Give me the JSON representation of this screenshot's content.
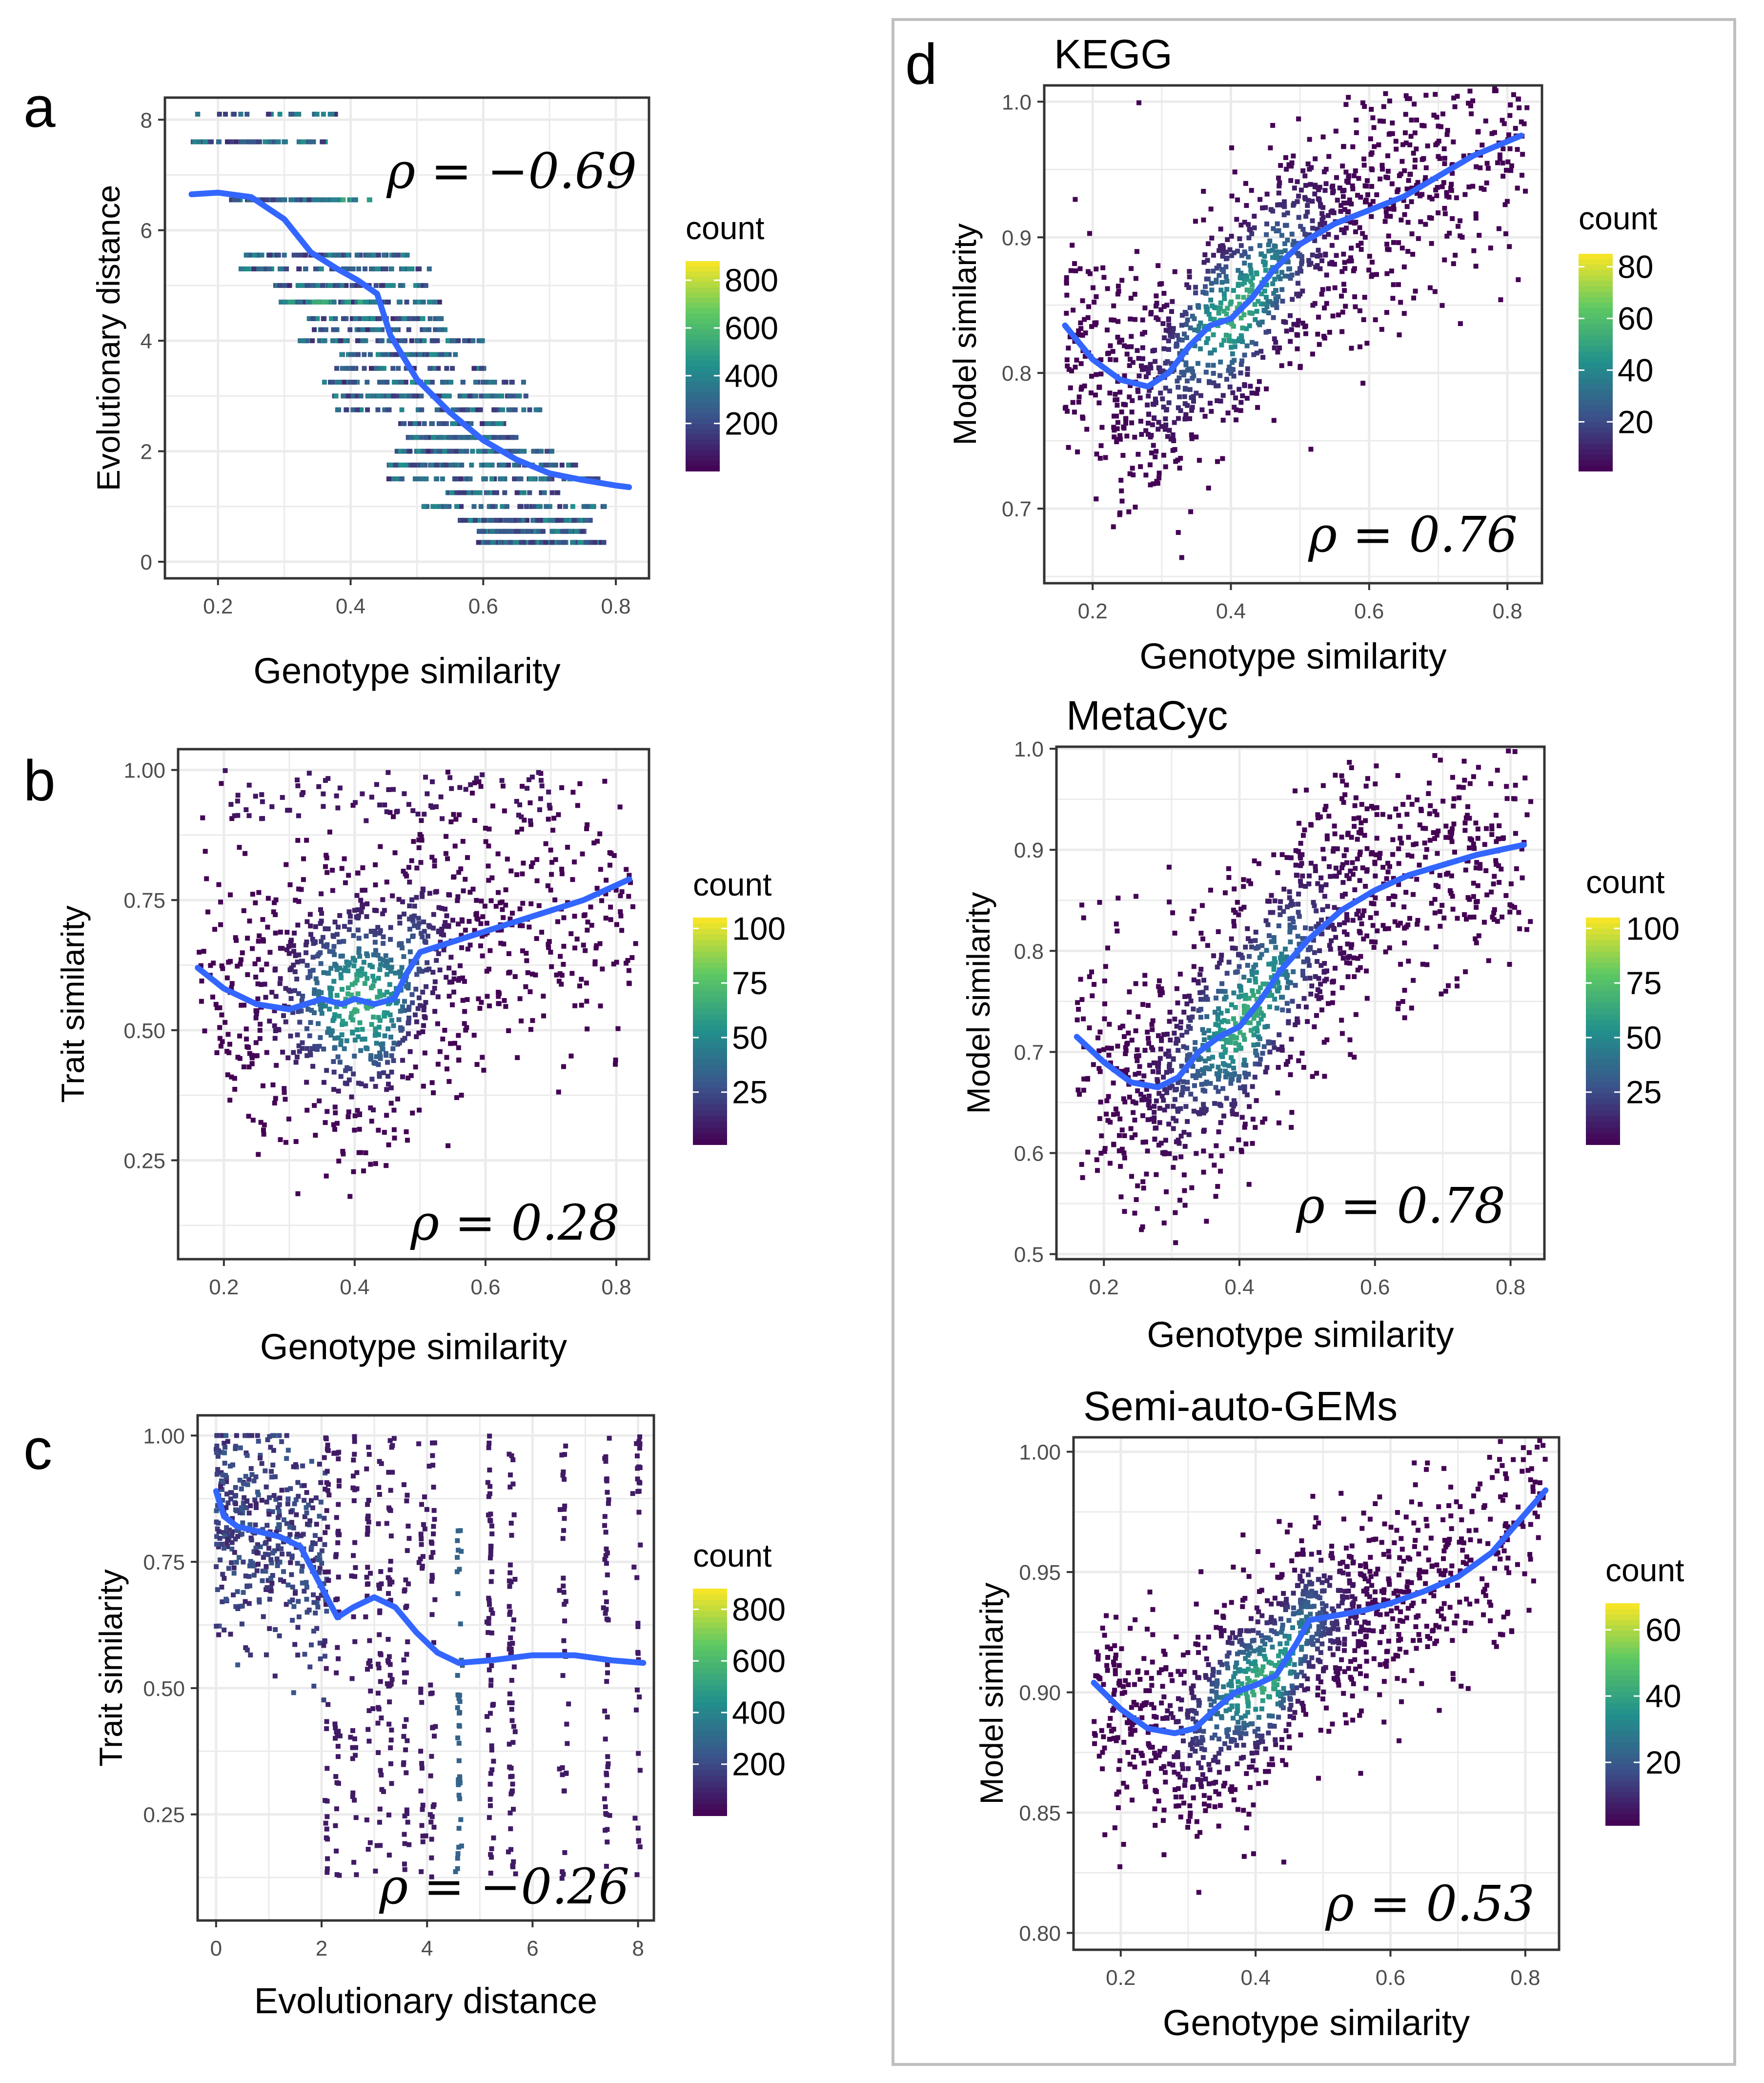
{
  "panels": {
    "a": {
      "letter": "a"
    },
    "b": {
      "letter": "b"
    },
    "c": {
      "letter": "c"
    },
    "d": {
      "letter": "d"
    }
  },
  "colors": {
    "background": "#ffffff",
    "grid": "#ebebeb",
    "axis_frame": "#333333",
    "smooth_line": "#3366ff",
    "panel_d_border": "#bfbfbf",
    "viridis": [
      "#440154",
      "#3b528b",
      "#21908c",
      "#5dc863",
      "#fde725"
    ]
  },
  "chart_data": [
    {
      "id": "a",
      "type": "heatmap",
      "title": "",
      "xlabel": "Genotype similarity",
      "ylabel": "Evolutionary distance",
      "xlim": [
        0.12,
        0.85
      ],
      "ylim": [
        -0.3,
        8.4
      ],
      "xticks": [
        0.2,
        0.4,
        0.6,
        0.8
      ],
      "xtick_labels": [
        "0.2",
        "0.4",
        "0.6",
        "0.8"
      ],
      "yticks": [
        0,
        2,
        4,
        6,
        8
      ],
      "ytick_labels": [
        "0",
        "2",
        "4",
        "6",
        "8"
      ],
      "annotation": "ρ = −0.69",
      "legend": {
        "title": "count",
        "min": 1,
        "max": 880,
        "breaks": [
          800,
          600,
          400,
          200
        ],
        "break_labels": [
          "800",
          "600",
          "400",
          "200"
        ],
        "position": "right"
      },
      "smooth": {
        "x": [
          0.16,
          0.2,
          0.25,
          0.3,
          0.34,
          0.38,
          0.41,
          0.44,
          0.46,
          0.5,
          0.55,
          0.6,
          0.65,
          0.7,
          0.75,
          0.8,
          0.82
        ],
        "y": [
          6.65,
          6.68,
          6.6,
          6.2,
          5.6,
          5.3,
          5.1,
          4.85,
          4.1,
          3.3,
          2.7,
          2.2,
          1.85,
          1.6,
          1.48,
          1.38,
          1.35
        ]
      }
    },
    {
      "id": "b",
      "type": "heatmap",
      "title": "",
      "xlabel": "Genotype similarity",
      "ylabel": "Trait similarity",
      "xlim": [
        0.13,
        0.85
      ],
      "ylim": [
        0.06,
        1.04
      ],
      "xticks": [
        0.2,
        0.4,
        0.6,
        0.8
      ],
      "xtick_labels": [
        "0.2",
        "0.4",
        "0.6",
        "0.8"
      ],
      "yticks": [
        0.25,
        0.5,
        0.75,
        1.0
      ],
      "ytick_labels": [
        "0.25",
        "0.50",
        "0.75",
        "1.00"
      ],
      "annotation": "ρ = 0.28",
      "legend": {
        "title": "count",
        "min": 1,
        "max": 105,
        "breaks": [
          100,
          75,
          50,
          25
        ],
        "break_labels": [
          "100",
          "75",
          "50",
          "25"
        ],
        "position": "right"
      },
      "smooth": {
        "x": [
          0.16,
          0.2,
          0.25,
          0.3,
          0.35,
          0.38,
          0.4,
          0.43,
          0.46,
          0.48,
          0.5,
          0.55,
          0.6,
          0.65,
          0.7,
          0.75,
          0.82
        ],
        "y": [
          0.62,
          0.58,
          0.55,
          0.54,
          0.56,
          0.55,
          0.56,
          0.55,
          0.56,
          0.61,
          0.65,
          0.67,
          0.69,
          0.71,
          0.73,
          0.75,
          0.79
        ]
      }
    },
    {
      "id": "c",
      "type": "heatmap",
      "title": "",
      "xlabel": "Evolutionary distance",
      "ylabel": "Trait similarity",
      "xlim": [
        -0.35,
        8.3
      ],
      "ylim": [
        0.04,
        1.04
      ],
      "xticks": [
        0,
        2,
        4,
        6,
        8
      ],
      "xtick_labels": [
        "0",
        "2",
        "4",
        "6",
        "8"
      ],
      "yticks": [
        0.25,
        0.5,
        0.75,
        1.0
      ],
      "ytick_labels": [
        "0.25",
        "0.50",
        "0.75",
        "1.00"
      ],
      "annotation": "ρ = −0.26",
      "legend": {
        "title": "count",
        "min": 1,
        "max": 880,
        "breaks": [
          800,
          600,
          400,
          200
        ],
        "break_labels": [
          "800",
          "600",
          "400",
          "200"
        ],
        "position": "right"
      },
      "smooth": {
        "x": [
          0.0,
          0.15,
          0.4,
          0.8,
          1.2,
          1.6,
          2.0,
          2.3,
          2.6,
          3.0,
          3.4,
          3.8,
          4.2,
          4.6,
          5.2,
          6.0,
          6.8,
          7.5,
          8.1
        ],
        "y": [
          0.89,
          0.84,
          0.82,
          0.81,
          0.8,
          0.78,
          0.7,
          0.64,
          0.66,
          0.68,
          0.66,
          0.61,
          0.57,
          0.55,
          0.555,
          0.565,
          0.565,
          0.555,
          0.55
        ]
      }
    },
    {
      "id": "d_kegg",
      "type": "heatmap",
      "title": "KEGG",
      "xlabel": "Genotype similarity",
      "ylabel": "Model similarity",
      "xlim": [
        0.13,
        0.85
      ],
      "ylim": [
        0.645,
        1.012
      ],
      "xticks": [
        0.2,
        0.4,
        0.6,
        0.8
      ],
      "xtick_labels": [
        "0.2",
        "0.4",
        "0.6",
        "0.8"
      ],
      "yticks": [
        0.7,
        0.8,
        0.9,
        1.0
      ],
      "ytick_labels": [
        "0.7",
        "0.8",
        "0.9",
        "1.0"
      ],
      "annotation": "ρ = 0.76",
      "legend": {
        "title": "count",
        "min": 1,
        "max": 85,
        "breaks": [
          80,
          60,
          40,
          20
        ],
        "break_labels": [
          "80",
          "60",
          "40",
          "20"
        ],
        "position": "right"
      },
      "smooth": {
        "x": [
          0.16,
          0.2,
          0.24,
          0.28,
          0.31,
          0.34,
          0.37,
          0.4,
          0.43,
          0.46,
          0.5,
          0.55,
          0.6,
          0.65,
          0.7,
          0.75,
          0.82
        ],
        "y": [
          0.835,
          0.81,
          0.795,
          0.79,
          0.8,
          0.82,
          0.835,
          0.84,
          0.855,
          0.875,
          0.895,
          0.91,
          0.92,
          0.93,
          0.945,
          0.96,
          0.975
        ]
      }
    },
    {
      "id": "d_metacyc",
      "type": "heatmap",
      "title": "MetaCyc",
      "xlabel": "Genotype similarity",
      "ylabel": "Model similarity",
      "xlim": [
        0.13,
        0.85
      ],
      "ylim": [
        0.495,
        1.002
      ],
      "xticks": [
        0.2,
        0.4,
        0.6,
        0.8
      ],
      "xtick_labels": [
        "0.2",
        "0.4",
        "0.6",
        "0.8"
      ],
      "yticks": [
        0.5,
        0.6,
        0.7,
        0.8,
        0.9,
        1.0
      ],
      "ytick_labels": [
        "0.5",
        "0.6",
        "0.7",
        "0.8",
        "0.9",
        "1.0"
      ],
      "annotation": "ρ = 0.78",
      "legend": {
        "title": "count",
        "min": 1,
        "max": 105,
        "breaks": [
          100,
          75,
          50,
          25
        ],
        "break_labels": [
          "100",
          "75",
          "50",
          "25"
        ],
        "position": "right"
      },
      "smooth": {
        "x": [
          0.16,
          0.2,
          0.24,
          0.28,
          0.31,
          0.34,
          0.37,
          0.4,
          0.43,
          0.46,
          0.5,
          0.55,
          0.6,
          0.65,
          0.7,
          0.75,
          0.82
        ],
        "y": [
          0.715,
          0.69,
          0.67,
          0.665,
          0.675,
          0.7,
          0.715,
          0.725,
          0.75,
          0.78,
          0.81,
          0.84,
          0.86,
          0.875,
          0.885,
          0.895,
          0.905
        ]
      }
    },
    {
      "id": "d_semi",
      "type": "heatmap",
      "title": "Semi-auto-GEMs",
      "xlabel": "Genotype similarity",
      "ylabel": "Model similarity",
      "xlim": [
        0.13,
        0.85
      ],
      "ylim": [
        0.793,
        1.006
      ],
      "xticks": [
        0.2,
        0.4,
        0.6,
        0.8
      ],
      "xtick_labels": [
        "0.2",
        "0.4",
        "0.6",
        "0.8"
      ],
      "yticks": [
        0.8,
        0.85,
        0.9,
        0.95,
        1.0
      ],
      "ytick_labels": [
        "0.80",
        "0.85",
        "0.90",
        "0.95",
        "1.00"
      ],
      "annotation": "ρ = 0.53",
      "legend": {
        "title": "count",
        "min": 1,
        "max": 68,
        "breaks": [
          60,
          40,
          20
        ],
        "break_labels": [
          "60",
          "40",
          "20"
        ],
        "position": "right"
      },
      "smooth": {
        "x": [
          0.16,
          0.2,
          0.24,
          0.28,
          0.31,
          0.34,
          0.37,
          0.4,
          0.43,
          0.46,
          0.48,
          0.52,
          0.56,
          0.6,
          0.65,
          0.7,
          0.75,
          0.83
        ],
        "y": [
          0.904,
          0.893,
          0.885,
          0.883,
          0.885,
          0.893,
          0.9,
          0.903,
          0.907,
          0.92,
          0.93,
          0.932,
          0.934,
          0.937,
          0.942,
          0.948,
          0.958,
          0.984
        ]
      }
    }
  ]
}
